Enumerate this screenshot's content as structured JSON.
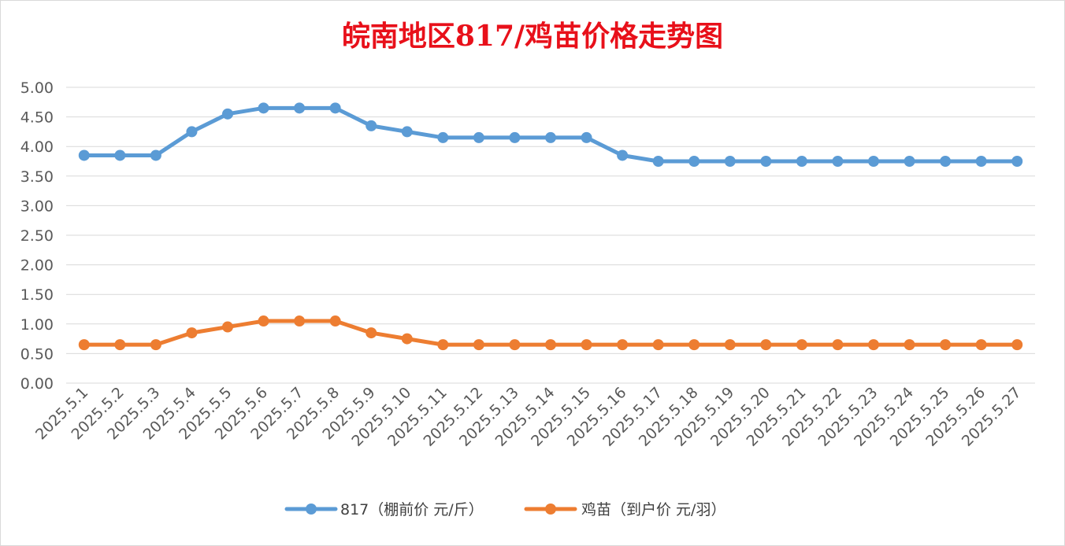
{
  "chart_data": {
    "type": "line",
    "title": "皖南地区817/鸡苗价格走势图",
    "categories": [
      "2025.5.1",
      "2025.5.2",
      "2025.5.3",
      "2025.5.4",
      "2025.5.5",
      "2025.5.6",
      "2025.5.7",
      "2025.5.8",
      "2025.5.9",
      "2025.5.10",
      "2025.5.11",
      "2025.5.12",
      "2025.5.13",
      "2025.5.14",
      "2025.5.15",
      "2025.5.16",
      "2025.5.17",
      "2025.5.18",
      "2025.5.19",
      "2025.5.20",
      "2025.5.21",
      "2025.5.22",
      "2025.5.23",
      "2025.5.24",
      "2025.5.25",
      "2025.5.26",
      "2025.5.27"
    ],
    "series": [
      {
        "name": "817（棚前价 元/斤）",
        "color": "#5b9bd5",
        "values": [
          3.85,
          3.85,
          3.85,
          4.25,
          4.55,
          4.65,
          4.65,
          4.65,
          4.35,
          4.25,
          4.15,
          4.15,
          4.15,
          4.15,
          4.15,
          3.85,
          3.75,
          3.75,
          3.75,
          3.75,
          3.75,
          3.75,
          3.75,
          3.75,
          3.75,
          3.75,
          3.75
        ]
      },
      {
        "name": "鸡苗（到户价 元/羽）",
        "color": "#ed7d31",
        "values": [
          0.65,
          0.65,
          0.65,
          0.85,
          0.95,
          1.05,
          1.05,
          1.05,
          0.85,
          0.75,
          0.65,
          0.65,
          0.65,
          0.65,
          0.65,
          0.65,
          0.65,
          0.65,
          0.65,
          0.65,
          0.65,
          0.65,
          0.65,
          0.65,
          0.65,
          0.65,
          0.65
        ]
      }
    ],
    "yticks": [
      "0.00",
      "0.50",
      "1.00",
      "1.50",
      "2.00",
      "2.50",
      "3.00",
      "3.50",
      "4.00",
      "4.50",
      "5.00"
    ],
    "ylim": [
      0,
      5
    ],
    "xlabel": "",
    "ylabel": "",
    "grid": true,
    "legend_position": "bottom"
  }
}
